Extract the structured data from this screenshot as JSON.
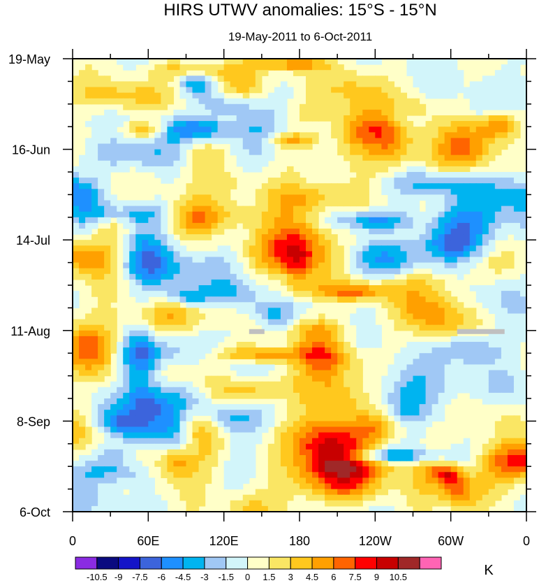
{
  "chart_data": {
    "type": "heatmap",
    "title": "HIRS UTWV anomalies: 15°S - 15°N",
    "subtitle": "19-May-2011 to 6-Oct-2011",
    "xlabel": "",
    "ylabel": "",
    "x_ticks": [
      "0",
      "60E",
      "120E",
      "180",
      "120W",
      "60W",
      "0"
    ],
    "y_ticks": [
      "19-May",
      "16-Jun",
      "14-Jul",
      "11-Aug",
      "8-Sep",
      "6-Oct"
    ],
    "xlim": [
      0,
      360
    ],
    "ylim_days": [
      0,
      140
    ],
    "colorbar": {
      "unit": "K",
      "levels": [
        "-10.5",
        "-9",
        "-7.5",
        "-6",
        "-4.5",
        "-3",
        "-1.5",
        "0",
        "1.5",
        "3",
        "4.5",
        "6",
        "7.5",
        "9",
        "10.5"
      ],
      "colors": [
        "#8a2be2",
        "#0a0a80",
        "#1414c8",
        "#3c64dc",
        "#1e90ff",
        "#00b4f0",
        "#a0c8f5",
        "#d2f5fa",
        "#ffffc8",
        "#fae664",
        "#ffc81e",
        "#ffa000",
        "#ff6400",
        "#ff0000",
        "#c80000",
        "#a02828",
        "#ff64b4"
      ]
    },
    "missing_color": "#c0c0c0"
  }
}
